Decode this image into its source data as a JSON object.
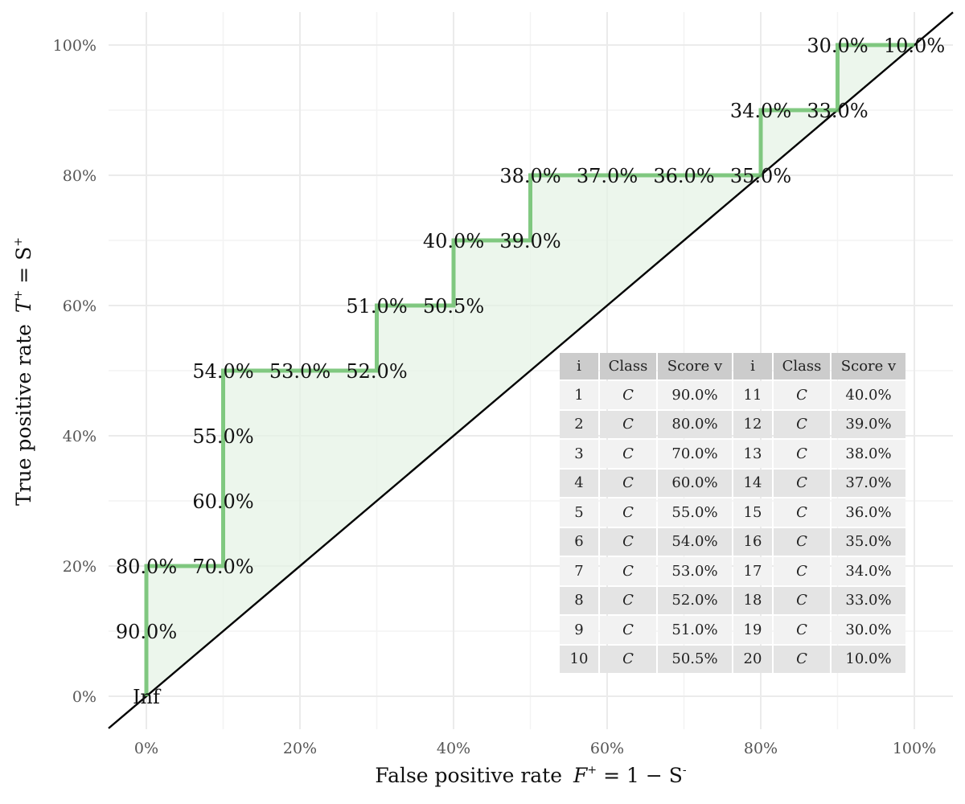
{
  "chart_data": {
    "type": "line",
    "subtype": "roc-step",
    "xlabel": {
      "text": "False positive rate",
      "formula_var": "F",
      "formula_sup": "+",
      "formula_rhs": " = 1 − S",
      "formula_rhs_sup": "-"
    },
    "ylabel": {
      "text": "True positive rate",
      "formula_var": "T",
      "formula_sup": "+",
      "formula_rhs": " = S",
      "formula_rhs_sup": "+"
    },
    "xlim": [
      0,
      1
    ],
    "ylim": [
      0,
      1
    ],
    "x_ticks": [
      0,
      0.2,
      0.4,
      0.6,
      0.8,
      1.0
    ],
    "x_tick_labels": [
      "0%",
      "20%",
      "40%",
      "60%",
      "80%",
      "100%"
    ],
    "y_ticks": [
      0,
      0.2,
      0.4,
      0.6,
      0.8,
      1.0
    ],
    "y_tick_labels": [
      "0%",
      "20%",
      "40%",
      "60%",
      "80%",
      "100%"
    ],
    "grid": true,
    "diagonal_reference": true,
    "series": [
      {
        "points": [
          {
            "x": 0.0,
            "y": 0.0,
            "label": "Inf"
          },
          {
            "x": 0.0,
            "y": 0.1,
            "label": "90.0%"
          },
          {
            "x": 0.0,
            "y": 0.2,
            "label": "80.0%"
          },
          {
            "x": 0.1,
            "y": 0.2,
            "label": "70.0%"
          },
          {
            "x": 0.1,
            "y": 0.3,
            "label": "60.0%"
          },
          {
            "x": 0.1,
            "y": 0.4,
            "label": "55.0%"
          },
          {
            "x": 0.1,
            "y": 0.5,
            "label": "54.0%"
          },
          {
            "x": 0.2,
            "y": 0.5,
            "label": "53.0%"
          },
          {
            "x": 0.3,
            "y": 0.5,
            "label": "52.0%"
          },
          {
            "x": 0.3,
            "y": 0.6,
            "label": "51.0%"
          },
          {
            "x": 0.4,
            "y": 0.6,
            "label": "50.5%"
          },
          {
            "x": 0.4,
            "y": 0.7,
            "label": "40.0%"
          },
          {
            "x": 0.5,
            "y": 0.7,
            "label": "39.0%"
          },
          {
            "x": 0.5,
            "y": 0.8,
            "label": "38.0%"
          },
          {
            "x": 0.6,
            "y": 0.8,
            "label": "37.0%"
          },
          {
            "x": 0.7,
            "y": 0.8,
            "label": "36.0%"
          },
          {
            "x": 0.8,
            "y": 0.8,
            "label": "35.0%"
          },
          {
            "x": 0.8,
            "y": 0.9,
            "label": "34.0%"
          },
          {
            "x": 0.9,
            "y": 0.9,
            "label": "33.0%"
          },
          {
            "x": 0.9,
            "y": 1.0,
            "label": "30.0%"
          },
          {
            "x": 1.0,
            "y": 1.0,
            "label": "10.0%"
          }
        ]
      }
    ],
    "colors": {
      "curve": "#6cbf6c",
      "area": "#e4f2e4",
      "diagonal": "#000000"
    },
    "legend": "none"
  },
  "table": {
    "headers": [
      "i",
      "Class",
      "Score v",
      "i",
      "Class",
      "Score v"
    ],
    "rows": [
      [
        "1",
        "C",
        "90.0%",
        "11",
        "C",
        "40.0%"
      ],
      [
        "2",
        "C",
        "80.0%",
        "12",
        "C",
        "39.0%"
      ],
      [
        "3",
        "C",
        "70.0%",
        "13",
        "C",
        "38.0%"
      ],
      [
        "4",
        "C",
        "60.0%",
        "14",
        "C",
        "37.0%"
      ],
      [
        "5",
        "C",
        "55.0%",
        "15",
        "C",
        "36.0%"
      ],
      [
        "6",
        "C",
        "54.0%",
        "16",
        "C",
        "35.0%"
      ],
      [
        "7",
        "C",
        "53.0%",
        "17",
        "C",
        "34.0%"
      ],
      [
        "8",
        "C",
        "52.0%",
        "18",
        "C",
        "33.0%"
      ],
      [
        "9",
        "C",
        "51.0%",
        "19",
        "C",
        "30.0%"
      ],
      [
        "10",
        "C",
        "50.5%",
        "20",
        "C",
        "10.0%"
      ]
    ]
  }
}
